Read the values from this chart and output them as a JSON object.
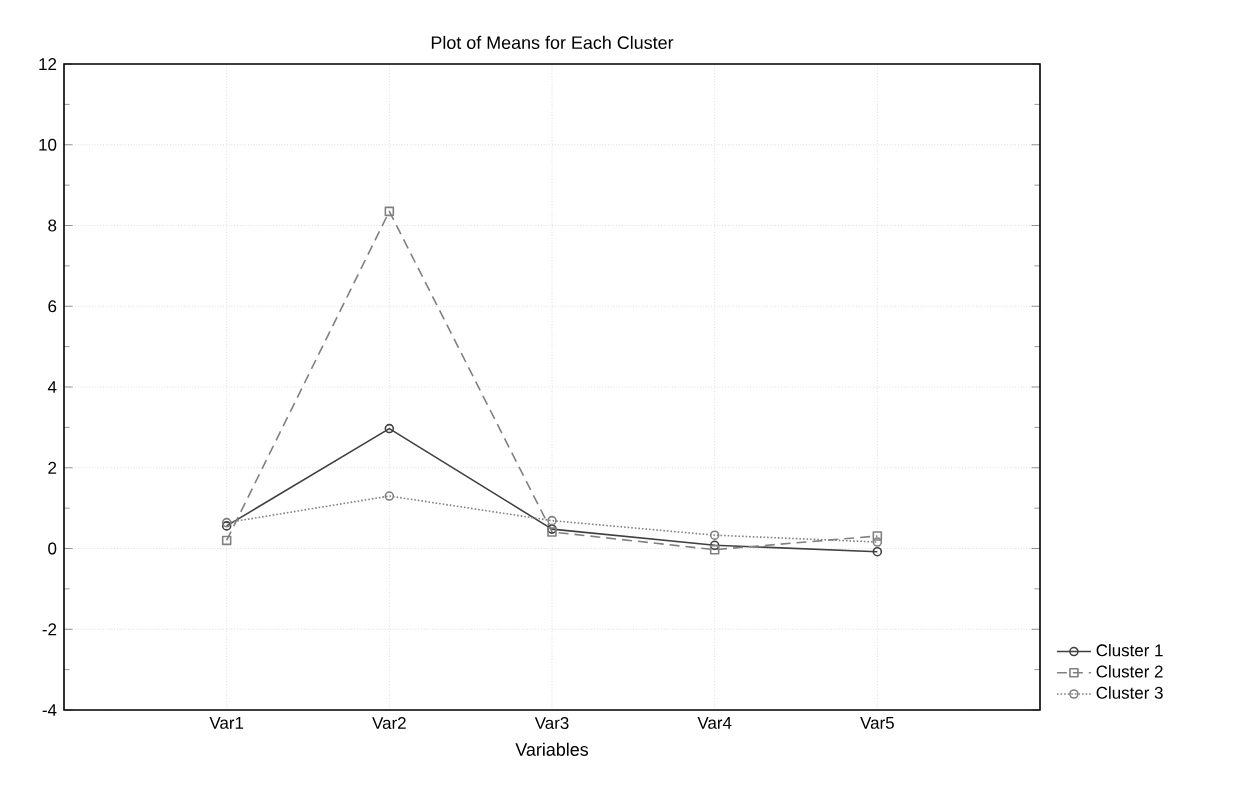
{
  "chart_data": {
    "type": "line",
    "title": "Plot of Means for Each Cluster",
    "xlabel": "Variables",
    "categories": [
      "Var1",
      "Var2",
      "Var3",
      "Var4",
      "Var5"
    ],
    "series": [
      {
        "name": "Cluster  1",
        "color": "#404040",
        "marker": "circle",
        "line_style": "solid",
        "values": [
          0.56,
          2.97,
          0.48,
          0.08,
          -0.08
        ]
      },
      {
        "name": "Cluster  2",
        "color": "#808080",
        "marker": "square",
        "line_style": "dashed",
        "values": [
          0.2,
          8.35,
          0.41,
          -0.03,
          0.31
        ]
      },
      {
        "name": "Cluster  3",
        "color": "#808080",
        "marker": "circle",
        "line_style": "dotted",
        "values": [
          0.64,
          1.3,
          0.69,
          0.33,
          0.16
        ]
      }
    ],
    "ylim": [
      -4,
      12
    ],
    "yticks": [
      -4,
      -2,
      0,
      2,
      4,
      6,
      8,
      10,
      12
    ],
    "grid": true,
    "legend": "bottom right"
  }
}
